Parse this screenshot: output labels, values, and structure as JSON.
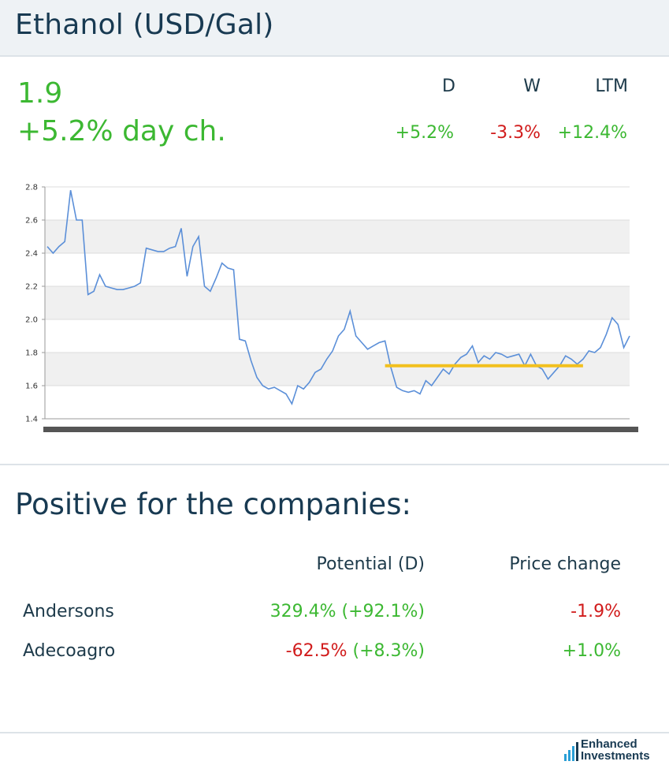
{
  "header": {
    "title": "Ethanol (USD/Gal)"
  },
  "summary": {
    "price": "1.9",
    "day_change": "+5.2% day ch.",
    "changes": [
      {
        "label": "D",
        "value": "+5.2%",
        "trend": "positive"
      },
      {
        "label": "W",
        "value": "-3.3%",
        "trend": "negative"
      },
      {
        "label": "LTM",
        "value": "+12.4%",
        "trend": "positive"
      }
    ]
  },
  "colors": {
    "positive": "#3cb832",
    "negative": "#d11c1c",
    "series": "#5b8fd8",
    "reference_line": "#f2c01e"
  },
  "chart_data": {
    "type": "line",
    "title": "",
    "xlabel": "",
    "ylabel": "",
    "ylim": [
      1.4,
      2.8
    ],
    "yticks": [
      "1.4",
      "1.6",
      "1.8",
      "2.0",
      "2.2",
      "2.4",
      "2.6",
      "2.8"
    ],
    "grid": true,
    "series": [
      {
        "name": "Ethanol (USD/Gal)",
        "x": [
          0,
          1,
          2,
          3,
          4,
          5,
          6,
          7,
          8,
          9,
          10,
          11,
          12,
          13,
          14,
          15,
          16,
          17,
          18,
          19,
          20,
          21,
          22,
          23,
          24,
          25,
          26,
          27,
          28,
          29,
          30,
          31,
          32,
          33,
          34,
          35,
          36,
          37,
          38,
          39,
          40,
          41,
          42,
          43,
          44,
          45,
          46,
          47,
          48,
          49,
          50,
          51,
          52,
          53,
          54,
          55,
          56,
          57,
          58,
          59,
          60,
          61,
          62,
          63,
          64,
          65,
          66,
          67,
          68,
          69,
          70,
          71,
          72,
          73,
          74,
          75,
          76,
          77,
          78,
          79,
          80,
          81,
          82,
          83,
          84,
          85,
          86,
          87,
          88,
          89,
          90,
          91,
          92,
          93,
          94,
          95,
          96,
          97,
          98,
          99,
          100
        ],
        "values": [
          2.44,
          2.4,
          2.44,
          2.47,
          2.78,
          2.6,
          2.6,
          2.15,
          2.17,
          2.27,
          2.2,
          2.19,
          2.18,
          2.18,
          2.19,
          2.2,
          2.22,
          2.43,
          2.42,
          2.41,
          2.41,
          2.43,
          2.44,
          2.55,
          2.26,
          2.44,
          2.5,
          2.2,
          2.17,
          2.25,
          2.34,
          2.31,
          2.3,
          1.88,
          1.87,
          1.75,
          1.65,
          1.6,
          1.58,
          1.59,
          1.57,
          1.55,
          1.49,
          1.6,
          1.58,
          1.62,
          1.68,
          1.7,
          1.76,
          1.81,
          1.9,
          1.94,
          2.05,
          1.9,
          1.86,
          1.82,
          1.84,
          1.86,
          1.87,
          1.71,
          1.59,
          1.57,
          1.56,
          1.57,
          1.55,
          1.63,
          1.6,
          1.65,
          1.7,
          1.67,
          1.73,
          1.77,
          1.79,
          1.84,
          1.74,
          1.78,
          1.76,
          1.8,
          1.79,
          1.77,
          1.78,
          1.79,
          1.72,
          1.79,
          1.72,
          1.7,
          1.64,
          1.68,
          1.72,
          1.78,
          1.76,
          1.73,
          1.76,
          1.81,
          1.8,
          1.83,
          1.91,
          2.01,
          1.97,
          1.83,
          1.9
        ]
      }
    ],
    "reference_line": {
      "value": 1.72,
      "x_from": 58,
      "x_to": 92
    }
  },
  "companies": {
    "title": "Positive for the companies:",
    "columns": {
      "potential": "Potential (D)",
      "price_change": "Price change"
    },
    "rows": [
      {
        "name": "Andersons",
        "potential": "329.4%",
        "potential_trend": "positive",
        "potential_delta": "(+92.1%)",
        "potential_delta_trend": "positive",
        "price_change": "-1.9%",
        "price_change_trend": "negative"
      },
      {
        "name": "Adecoagro",
        "potential": "-62.5%",
        "potential_trend": "negative",
        "potential_delta": "(+8.3%)",
        "potential_delta_trend": "positive",
        "price_change": "+1.0%",
        "price_change_trend": "positive"
      }
    ]
  },
  "logo": {
    "line1": "Enhanced",
    "line2": "Investments"
  }
}
